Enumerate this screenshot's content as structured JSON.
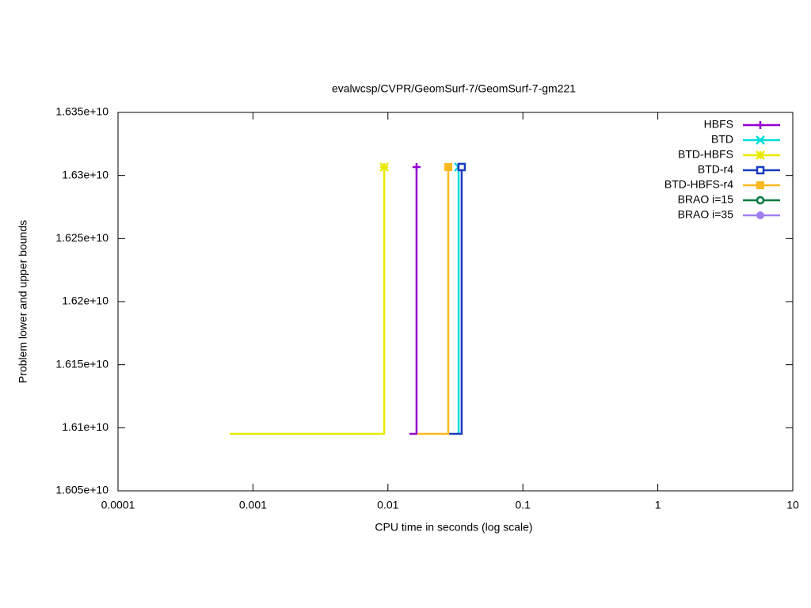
{
  "chart_data": {
    "type": "line",
    "title": "evalwcsp/CVPR/GeomSurf-7/GeomSurf-7-gm221",
    "xlabel": "CPU time in seconds (log scale)",
    "ylabel": "Problem lower and upper bounds",
    "xscale": "log",
    "xlim": [
      0.0001,
      10
    ],
    "xticks": [
      0.0001,
      0.001,
      0.01,
      0.1,
      1,
      10
    ],
    "ylim": [
      16050000000,
      16350000000
    ],
    "yticks": [
      {
        "value": 16050000000,
        "label": "1.605e+10"
      },
      {
        "value": 16100000000,
        "label": "1.61e+10"
      },
      {
        "value": 16150000000,
        "label": "1.615e+10"
      },
      {
        "value": 16200000000,
        "label": "1.62e+10"
      },
      {
        "value": 16250000000,
        "label": "1.625e+10"
      },
      {
        "value": 16300000000,
        "label": "1.63e+10"
      },
      {
        "value": 16350000000,
        "label": "1.635e+10"
      }
    ],
    "legend": "top-right",
    "series": [
      {
        "name": "HBFS",
        "color": "#9400d3",
        "marker": "plus",
        "x": [
          0.01445,
          0.0163,
          0.0163
        ],
        "values": [
          16095200000,
          16095200000,
          16306700000
        ]
      },
      {
        "name": "BTD",
        "color": "#00dcdc",
        "marker": "cross",
        "x": [
          0.0334,
          0.0334
        ],
        "values": [
          16095200000,
          16306700000
        ]
      },
      {
        "name": "BTD-HBFS",
        "color": "#eaea00",
        "marker": "star",
        "x": [
          0.000672,
          0.00938,
          0.00938
        ],
        "values": [
          16095200000,
          16095200000,
          16306700000
        ]
      },
      {
        "name": "BTD-r4",
        "color": "#1a3cc0",
        "marker": "square-open",
        "x": [
          0.028,
          0.0352,
          0.0352
        ],
        "values": [
          16095200000,
          16095200000,
          16306700000
        ]
      },
      {
        "name": "BTD-HBFS-r4",
        "color": "#fbb820",
        "marker": "square",
        "x": [
          0.0165,
          0.028,
          0.028
        ],
        "values": [
          16095200000,
          16095200000,
          16306700000
        ]
      },
      {
        "name": "BRAO i=15",
        "color": "#00783c",
        "marker": "circle-open",
        "x": [],
        "values": []
      },
      {
        "name": "BRAO i=35",
        "color": "#a080f0",
        "marker": "circle",
        "x": [],
        "values": []
      }
    ]
  }
}
